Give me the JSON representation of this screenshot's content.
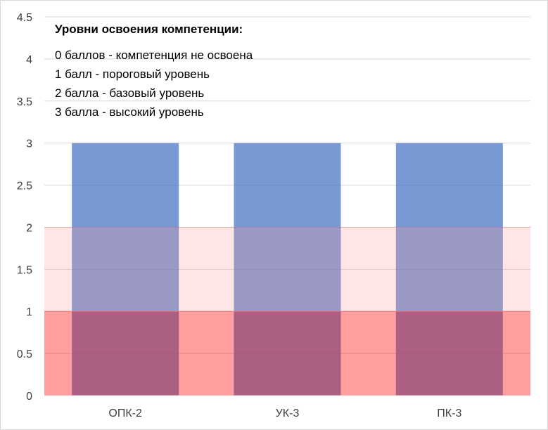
{
  "chart_data": {
    "type": "bar",
    "categories": [
      "ОПК-2",
      "УК-3",
      "ПК-3"
    ],
    "values": [
      3,
      3,
      3
    ],
    "ylim": [
      0,
      4.5
    ],
    "yticks": [
      "0",
      "0.5",
      "1",
      "1.5",
      "2",
      "2.5",
      "3",
      "3.5",
      "4",
      "4.5"
    ],
    "ytick_values": [
      0,
      0.5,
      1,
      1.5,
      2,
      2.5,
      3,
      3.5,
      4,
      4.5
    ],
    "grid": true,
    "bands": [
      {
        "from": 0,
        "to": 1,
        "color": "#ff0000",
        "opacity": 0.38
      },
      {
        "from": 1,
        "to": 2,
        "color": "#ff9999",
        "opacity": 0.25
      }
    ],
    "bar_color": "#4472c4",
    "annotation": {
      "title": "Уровни освоения компетенции:",
      "lines": [
        "0 баллов - компетенция не освоена",
        "1 балл - пороговый уровень",
        "2 балла - базовый уровень",
        "3 балла - высокий уровень"
      ]
    }
  }
}
